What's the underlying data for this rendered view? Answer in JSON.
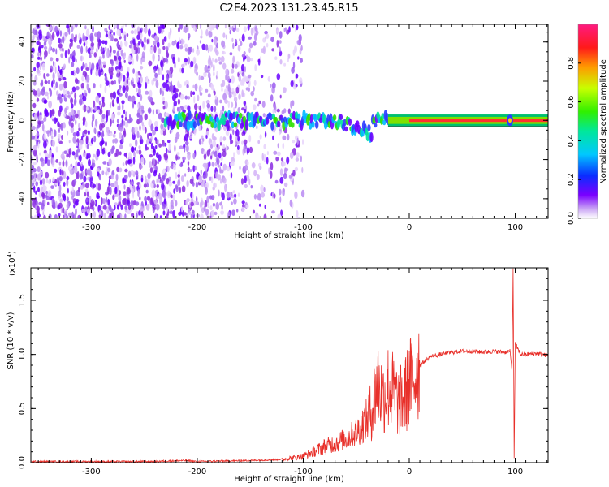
{
  "title": "C2E4.2023.131.23.45.R15",
  "colors": {
    "snr_line": "#e8302a",
    "spectrum_light": "#d8b8f5",
    "spectrum_mid": "#8a2be2",
    "spectrum_dark": "#6a00ff"
  },
  "chart_data": [
    {
      "type": "heatmap",
      "title": "C2E4.2023.131.23.45.R15",
      "xlabel": "Height of straight line (km)",
      "ylabel": "Frequency (Hz)",
      "xlim": [
        -357,
        131
      ],
      "ylim": [
        -50,
        49
      ],
      "xticks": [
        -300,
        -200,
        -100,
        0,
        100
      ],
      "yticks": [
        -40,
        -20,
        0,
        20,
        40
      ],
      "colorbar": {
        "label": "Normalized spectral amplitude",
        "range": [
          0.0,
          1.0
        ],
        "ticks": [
          "0.0",
          "0.2",
          "0.4",
          "0.6",
          "0.8"
        ],
        "colormap": "rainbow"
      },
      "features": {
        "noise_region_x": [
          -357,
          -120
        ],
        "signal_band_center_hz": 0,
        "signal_band_start_x": -230,
        "strong_signal_from_x": -20,
        "spike_x": 95
      }
    },
    {
      "type": "line",
      "xlabel": "Height of straight line (km)",
      "ylabel": "SNR (10 * v/v)",
      "scale_label": "(x10",
      "scale_exp": "4",
      "scale_close": ")",
      "xlim": [
        -357,
        131
      ],
      "ylim": [
        0.0,
        1.8
      ],
      "xticks": [
        -300,
        -200,
        -100,
        0,
        100
      ],
      "yticks": [
        "0.0",
        "0.5",
        "1.0",
        "1.5"
      ],
      "series": [
        {
          "x": [
            -357,
            -300,
            -250,
            -210,
            -200,
            -150,
            -120,
            -100,
            -90,
            -80,
            -70,
            -60,
            -50,
            -40,
            -35,
            -30,
            -25,
            -20,
            -15,
            -10,
            -5,
            0,
            10,
            20,
            30,
            40,
            50,
            60,
            70,
            80,
            90,
            95,
            97,
            98,
            99,
            100,
            105,
            110,
            120,
            131
          ],
          "y": [
            0.01,
            0.01,
            0.01,
            0.02,
            0.01,
            0.02,
            0.03,
            0.06,
            0.1,
            0.15,
            0.18,
            0.22,
            0.28,
            0.4,
            0.5,
            0.75,
            0.6,
            0.7,
            0.65,
            0.55,
            0.6,
            0.72,
            0.9,
            0.98,
            1.0,
            1.02,
            1.03,
            1.03,
            1.02,
            1.03,
            1.02,
            1.03,
            0.85,
            1.8,
            0.05,
            1.1,
            1.0,
            1.0,
            1.01,
            0.99
          ]
        }
      ]
    }
  ]
}
